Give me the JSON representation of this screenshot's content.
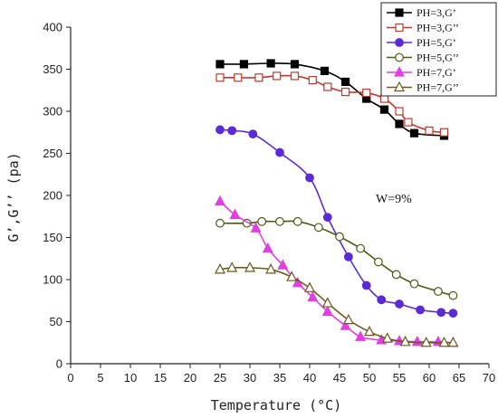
{
  "chart_data": {
    "type": "line",
    "xlabel": "Temperature (°C)",
    "ylabel": "G’,G’’ (pa)",
    "xlim": [
      0,
      70
    ],
    "ylim": [
      0,
      400
    ],
    "xticks": [
      0,
      5,
      10,
      15,
      20,
      25,
      30,
      35,
      40,
      45,
      50,
      55,
      60,
      65,
      70
    ],
    "yticks": [
      0,
      50,
      100,
      150,
      200,
      250,
      300,
      350,
      400
    ],
    "grid": false,
    "legend_position": "top-right",
    "annotation": "W=9%",
    "series": [
      {
        "name": "PH=3,G’",
        "color": "#000000",
        "marker": "square-filled",
        "x": [
          25,
          29,
          33.5,
          37.5,
          42.5,
          46,
          49.5,
          52.5,
          55,
          57.5,
          62.5
        ],
        "y": [
          356,
          356,
          357,
          356,
          348,
          335,
          315,
          302,
          285,
          274,
          271
        ]
      },
      {
        "name": "PH=3,G’’",
        "color": "#c0392b",
        "marker": "square-open",
        "x": [
          25,
          28,
          31.5,
          34.5,
          37.5,
          40.5,
          43,
          46,
          49.5,
          52.5,
          55,
          56.5,
          60,
          62.5
        ],
        "y": [
          340,
          340,
          340,
          342,
          342,
          337,
          329,
          323,
          322,
          315,
          300,
          287,
          277,
          275
        ]
      },
      {
        "name": "PH=5,G’",
        "color": "#5b2bd6",
        "marker": "circle-filled",
        "x": [
          25,
          27,
          30.5,
          35,
          40,
          43,
          46.5,
          49.5,
          52,
          55,
          58.5,
          62,
          64
        ],
        "y": [
          278,
          277,
          273,
          251,
          221,
          174,
          127,
          93,
          76,
          71,
          64,
          61,
          60
        ]
      },
      {
        "name": "PH=5,G’’",
        "color": "#4d5a14",
        "marker": "circle-open",
        "x": [
          25,
          29.5,
          32,
          35,
          38,
          41.5,
          45,
          48.5,
          51.5,
          54.5,
          57.5,
          61.5,
          64
        ],
        "y": [
          167,
          167,
          169,
          169,
          169,
          162,
          151,
          137,
          121,
          106,
          95,
          86,
          81
        ]
      },
      {
        "name": "PH=7,G’",
        "color": "#e040e0",
        "marker": "triangle-filled",
        "x": [
          25,
          27.5,
          31,
          33,
          35.5,
          38,
          40.5,
          43,
          46,
          48.5,
          52,
          55,
          58,
          61.5,
          64
        ],
        "y": [
          193,
          177,
          161,
          137,
          117,
          96,
          79,
          62,
          45,
          32,
          28,
          27,
          26,
          26,
          25
        ]
      },
      {
        "name": "PH=7,G’’",
        "color": "#6b5a1e",
        "marker": "triangle-open",
        "x": [
          25,
          27,
          30,
          33.5,
          37,
          40,
          43,
          46.5,
          50,
          53,
          56,
          59.5,
          62.5,
          64
        ],
        "y": [
          112,
          114,
          114,
          112,
          103,
          90,
          72,
          52,
          38,
          30,
          26,
          25,
          25,
          25
        ]
      }
    ]
  }
}
